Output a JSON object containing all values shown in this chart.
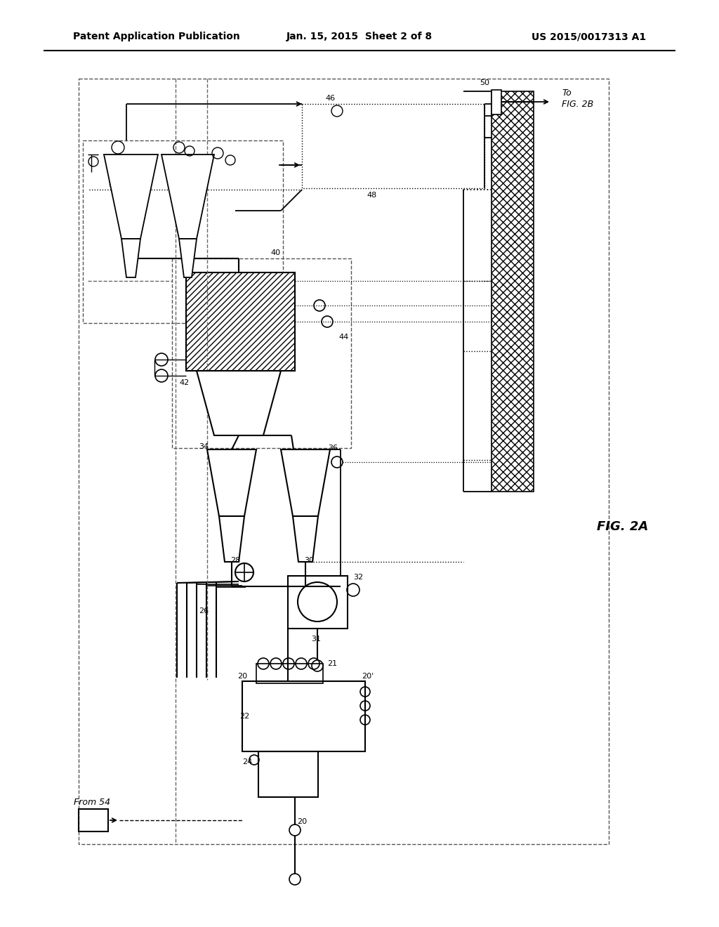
{
  "bg": "#ffffff",
  "lc": "#000000",
  "header_left": "Patent Application Publication",
  "header_center": "Jan. 15, 2015  Sheet 2 of 8",
  "header_right": "US 2015/0017313 A1",
  "fig_label": "FIG. 2A",
  "to_fig2b_1": "To",
  "to_fig2b_2": "FIG. 2B",
  "from54": "From 54"
}
